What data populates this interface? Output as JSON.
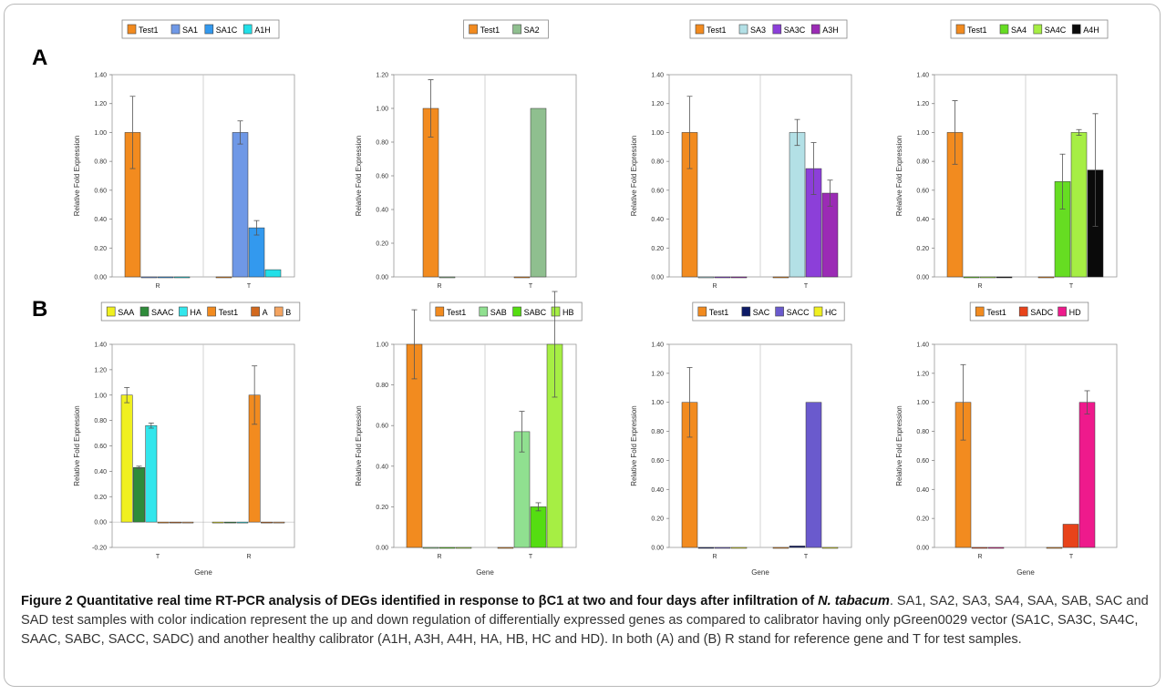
{
  "panel_labels": [
    "A",
    "B"
  ],
  "caption": {
    "title": "Figure 2 Quantitative real time RT-PCR analysis of DEGs identified in response to βC1 at two and four days after infiltration of ",
    "title_species": "N. tabacum",
    "body": ". SA1, SA2, SA3, SA4, SAA, SAB, SAC and SAD test samples with color indication represent the up and down regulation of differentially expressed genes as compared to calibrator having only pGreen0029 vector (SA1C, SA3C, SA4C, SAAC, SABC, SACC, SADC) and another healthy calibrator (A1H, A3H, A4H, HA, HB, HC and HD). In both (A) and (B) R stand for reference gene and T for test samples."
  },
  "chart_data": [
    {
      "type": "bar",
      "panel": "A",
      "categories": [
        "R",
        "T"
      ],
      "xlabel": "",
      "ylabel": "Relative Fold Expression",
      "ylim": [
        0,
        1.4
      ],
      "ytick_step": 0.2,
      "yticks": [
        "0.00",
        "0.20",
        "0.40",
        "0.60",
        "0.80",
        "1.00",
        "1.20",
        "1.40"
      ],
      "grid": "vertical",
      "legend_position": "top",
      "series": [
        {
          "name": "Test1",
          "color": "#f28b1f",
          "values": [
            1.0,
            0.0
          ],
          "errors": [
            0.25,
            0.0
          ]
        },
        {
          "name": "SA1",
          "color": "#6f98e6",
          "values": [
            0.0,
            1.0
          ],
          "errors": [
            0.0,
            0.08
          ]
        },
        {
          "name": "SA1C",
          "color": "#3399ee",
          "values": [
            0.0,
            0.34
          ],
          "errors": [
            0.0,
            0.05
          ]
        },
        {
          "name": "A1H",
          "color": "#22e0e8",
          "values": [
            0.0,
            0.05
          ],
          "errors": [
            0.0,
            0.0
          ]
        }
      ]
    },
    {
      "type": "bar",
      "panel": "A",
      "categories": [
        "R",
        "T"
      ],
      "xlabel": "",
      "ylabel": "Relative Fold Expression",
      "ylim": [
        0,
        1.2
      ],
      "ytick_step": 0.2,
      "yticks": [
        "0.00",
        "0.20",
        "0.40",
        "0.60",
        "0.80",
        "1.00",
        "1.20"
      ],
      "grid": "vertical",
      "legend_position": "top",
      "series": [
        {
          "name": "Test1",
          "color": "#f28b1f",
          "values": [
            1.0,
            0.0
          ],
          "errors": [
            0.17,
            0.0
          ]
        },
        {
          "name": "SA2",
          "color": "#8fbf8f",
          "values": [
            0.0,
            1.0
          ],
          "errors": [
            0.0,
            0.0
          ]
        }
      ]
    },
    {
      "type": "bar",
      "panel": "A",
      "categories": [
        "R",
        "T"
      ],
      "xlabel": "",
      "ylabel": "Relative Fold Expression",
      "ylim": [
        0,
        1.4
      ],
      "ytick_step": 0.2,
      "yticks": [
        "0.00",
        "0.20",
        "0.40",
        "0.60",
        "0.80",
        "1.00",
        "1.20",
        "1.40"
      ],
      "grid": "vertical",
      "legend_position": "top",
      "series": [
        {
          "name": "Test1",
          "color": "#f28b1f",
          "values": [
            1.0,
            0.0
          ],
          "errors": [
            0.25,
            0.0
          ]
        },
        {
          "name": "SA3",
          "color": "#b3e0e6",
          "values": [
            0.0,
            1.0
          ],
          "errors": [
            0.0,
            0.09
          ]
        },
        {
          "name": "SA3C",
          "color": "#8c3fd9",
          "values": [
            0.0,
            0.75
          ],
          "errors": [
            0.0,
            0.18
          ]
        },
        {
          "name": "A3H",
          "color": "#9b2bb5",
          "values": [
            0.0,
            0.58
          ],
          "errors": [
            0.0,
            0.09
          ]
        }
      ]
    },
    {
      "type": "bar",
      "panel": "A",
      "categories": [
        "R",
        "T"
      ],
      "xlabel": "",
      "ylabel": "Relative Fold Expression",
      "ylim": [
        0,
        1.4
      ],
      "ytick_step": 0.2,
      "yticks": [
        "0.00",
        "0.20",
        "0.40",
        "0.60",
        "0.80",
        "1.00",
        "1.20",
        "1.40"
      ],
      "grid": "vertical",
      "legend_position": "top",
      "series": [
        {
          "name": "Test1",
          "color": "#f28b1f",
          "values": [
            1.0,
            0.0
          ],
          "errors": [
            0.22,
            0.0
          ]
        },
        {
          "name": "SA4",
          "color": "#66dd22",
          "values": [
            0.0,
            0.66
          ],
          "errors": [
            0.0,
            0.19
          ]
        },
        {
          "name": "SA4C",
          "color": "#a6ee44",
          "values": [
            0.0,
            1.0
          ],
          "errors": [
            0.0,
            0.02
          ]
        },
        {
          "name": "A4H",
          "color": "#0a0a0a",
          "values": [
            0.0,
            0.74
          ],
          "errors": [
            0.0,
            0.39
          ]
        }
      ]
    },
    {
      "type": "bar",
      "panel": "B",
      "categories": [
        "T",
        "R"
      ],
      "xlabel": "Gene",
      "ylabel": "Relative Fold Expression",
      "ylim": [
        -0.2,
        1.4
      ],
      "ytick_step": 0.2,
      "yticks": [
        "-0.20",
        "0.00",
        "0.20",
        "0.40",
        "0.60",
        "0.80",
        "1.00",
        "1.20",
        "1.40"
      ],
      "grid": "vertical",
      "legend_position": "top",
      "series": [
        {
          "name": "SAA",
          "color": "#f0f020",
          "values": [
            1.0,
            0.0
          ],
          "errors": [
            0.06,
            0.0
          ]
        },
        {
          "name": "SAAC",
          "color": "#2e8b3a",
          "values": [
            0.43,
            0.0
          ],
          "errors": [
            0.01,
            0.0
          ]
        },
        {
          "name": "HA",
          "color": "#33e6ec",
          "values": [
            0.76,
            0.0
          ],
          "errors": [
            0.02,
            0.0
          ]
        },
        {
          "name": "Test1",
          "color": "#f28b1f",
          "values": [
            0.0,
            1.0
          ],
          "errors": [
            0.0,
            0.23
          ]
        },
        {
          "name": "A",
          "color": "#d2691e",
          "values": [
            0.0,
            0.0
          ],
          "errors": [
            0.0,
            0.0
          ]
        },
        {
          "name": "B",
          "color": "#f4a460",
          "values": [
            0.0,
            0.0
          ],
          "errors": [
            0.0,
            0.0
          ]
        }
      ]
    },
    {
      "type": "bar",
      "panel": "B",
      "categories": [
        "R",
        "T"
      ],
      "xlabel": "Gene",
      "ylabel": "Relative Fold Expression",
      "ylim": [
        0,
        1.0
      ],
      "ytick_step": 0.2,
      "yticks": [
        "0.00",
        "0.20",
        "0.40",
        "0.60",
        "0.80",
        "1.00"
      ],
      "grid": "vertical",
      "legend_position": "top",
      "series": [
        {
          "name": "Test1",
          "color": "#f28b1f",
          "values": [
            1.0,
            0.0
          ],
          "errors": [
            0.17,
            0.0
          ]
        },
        {
          "name": "SAB",
          "color": "#90e090",
          "values": [
            0.0,
            0.57
          ],
          "errors": [
            0.0,
            0.1
          ]
        },
        {
          "name": "SABC",
          "color": "#55dd11",
          "values": [
            0.0,
            0.2
          ],
          "errors": [
            0.0,
            0.02
          ]
        },
        {
          "name": "HB",
          "color": "#a6ee44",
          "values": [
            0.0,
            1.0
          ],
          "errors": [
            0.0,
            0.26
          ]
        }
      ]
    },
    {
      "type": "bar",
      "panel": "B",
      "categories": [
        "R",
        "T"
      ],
      "xlabel": "Gene",
      "ylabel": "Relative Fold Expression",
      "ylim": [
        0,
        1.4
      ],
      "ytick_step": 0.2,
      "yticks": [
        "0.00",
        "0.20",
        "0.40",
        "0.60",
        "0.80",
        "1.00",
        "1.20",
        "1.40"
      ],
      "grid": "vertical",
      "legend_position": "top",
      "series": [
        {
          "name": "Test1",
          "color": "#f28b1f",
          "values": [
            1.0,
            0.0
          ],
          "errors": [
            0.24,
            0.0
          ]
        },
        {
          "name": "SAC",
          "color": "#0d1a66",
          "values": [
            0.0,
            0.01
          ],
          "errors": [
            0.0,
            0.0
          ]
        },
        {
          "name": "SACC",
          "color": "#6a5acd",
          "values": [
            0.0,
            1.0
          ],
          "errors": [
            0.0,
            0.0
          ]
        },
        {
          "name": "HC",
          "color": "#f0f020",
          "values": [
            0.0,
            0.0
          ],
          "errors": [
            0.0,
            0.0
          ]
        }
      ]
    },
    {
      "type": "bar",
      "panel": "B",
      "categories": [
        "R",
        "T"
      ],
      "xlabel": "Gene",
      "ylabel": "Relative Fold Expression",
      "ylim": [
        0,
        1.4
      ],
      "ytick_step": 0.2,
      "yticks": [
        "0.00",
        "0.20",
        "0.40",
        "0.60",
        "0.80",
        "1.00",
        "1.20",
        "1.40"
      ],
      "grid": "vertical",
      "legend_position": "top",
      "series": [
        {
          "name": "Test1",
          "color": "#f28b1f",
          "values": [
            1.0,
            0.0
          ],
          "errors": [
            0.26,
            0.0
          ]
        },
        {
          "name": "SADC",
          "color": "#e8431a",
          "values": [
            0.0,
            0.16
          ],
          "errors": [
            0.0,
            0.0
          ]
        },
        {
          "name": "HD",
          "color": "#ee1a8c",
          "values": [
            0.0,
            1.0
          ],
          "errors": [
            0.0,
            0.08
          ]
        }
      ]
    }
  ]
}
